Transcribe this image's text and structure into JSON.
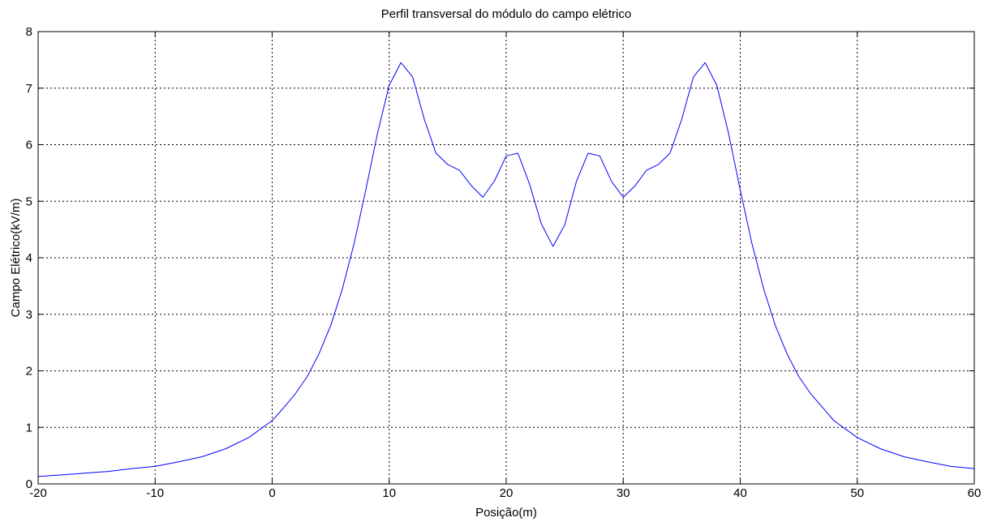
{
  "chart_data": {
    "type": "line",
    "title": "Perfil transversal do módulo do campo elétrico",
    "xlabel": "Posição(m)",
    "ylabel": "Campo Elétrico(kV/m)",
    "xlim": [
      -20,
      60
    ],
    "ylim": [
      0,
      8
    ],
    "xticks": [
      -20,
      -10,
      0,
      10,
      20,
      30,
      40,
      50,
      60
    ],
    "yticks": [
      0,
      1,
      2,
      3,
      4,
      5,
      6,
      7,
      8
    ],
    "xtick_labels": [
      "-20",
      "-10",
      "0",
      "10",
      "20",
      "30",
      "40",
      "50",
      "60"
    ],
    "ytick_labels": [
      "0",
      "1",
      "2",
      "3",
      "4",
      "5",
      "6",
      "7",
      "8"
    ],
    "grid": true,
    "series_color": "#0000ff",
    "series": [
      {
        "x": [
          -20,
          -18,
          -16,
          -14,
          -12,
          -10,
          -8,
          -6,
          -4,
          -2,
          0,
          1,
          2,
          3,
          4,
          5,
          6,
          7,
          8,
          9,
          10,
          11,
          12,
          13,
          14,
          15,
          16,
          17,
          18,
          19,
          20,
          21,
          22,
          23,
          24,
          25,
          26,
          27,
          28,
          29,
          30,
          31,
          32,
          33,
          34,
          35,
          36,
          37,
          38,
          39,
          40,
          41,
          42,
          43,
          44,
          45,
          46,
          48,
          50,
          52,
          54,
          56,
          58,
          60
        ],
        "y": [
          0.13,
          0.16,
          0.19,
          0.22,
          0.27,
          0.31,
          0.39,
          0.48,
          0.62,
          0.82,
          1.12,
          1.35,
          1.6,
          1.9,
          2.3,
          2.8,
          3.45,
          4.25,
          5.2,
          6.2,
          7.05,
          7.45,
          7.2,
          6.45,
          5.85,
          5.65,
          5.55,
          5.28,
          5.07,
          5.36,
          5.8,
          5.85,
          5.3,
          4.6,
          4.2,
          4.58,
          5.35,
          5.85,
          5.8,
          5.35,
          5.07,
          5.27,
          5.55,
          5.65,
          5.85,
          6.45,
          7.2,
          7.45,
          7.05,
          6.2,
          5.2,
          4.25,
          3.45,
          2.8,
          2.3,
          1.9,
          1.6,
          1.12,
          0.82,
          0.62,
          0.48,
          0.39,
          0.31,
          0.27
        ]
      }
    ]
  }
}
